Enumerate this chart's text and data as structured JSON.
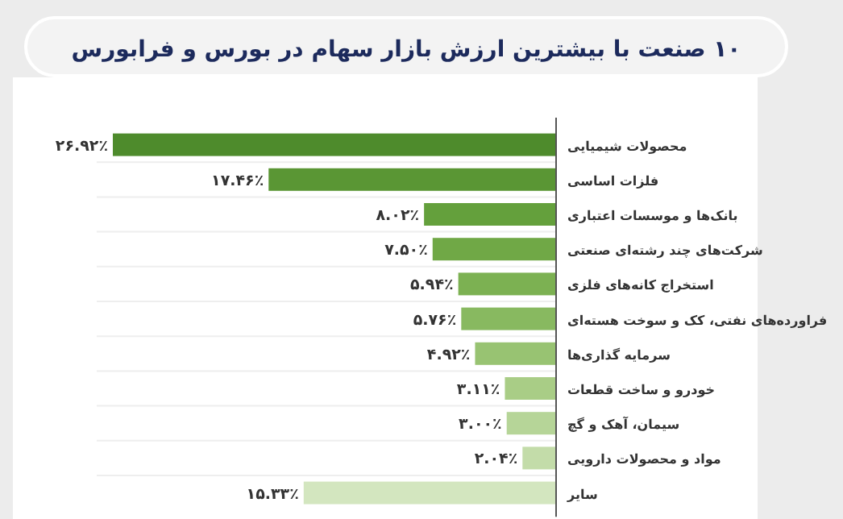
{
  "chart_data": {
    "type": "bar",
    "orientation": "horizontal",
    "title": "۱۰ صنعت با بیشترین ارزش بازار سهام در بورس و فرابورس",
    "categories": [
      "محصولات شیمیایی",
      "فلزات اساسی",
      "بانک‌ها و موسسات اعتباری",
      "شرکت‌های چند رشته‌ای صنعتی",
      "استخراج کانه‌های فلزی",
      "فراورده‌های نفتی، کک و سوخت هسته‌ای",
      "سرمایه گذاری‌ها",
      "خودرو و ساخت قطعات",
      "سیمان، آهک و گچ",
      "مواد و محصولات دارویی",
      "سایر"
    ],
    "values": [
      26.92,
      17.46,
      8.02,
      7.5,
      5.94,
      5.76,
      4.92,
      3.11,
      3.0,
      2.04,
      15.33
    ],
    "value_labels": [
      "۲۶.۹۲٪",
      "۱۷.۴۶٪",
      "۸.۰۲٪",
      "۷.۵۰٪",
      "۵.۹۴٪",
      "۵.۷۶٪",
      "۴.۹۲٪",
      "۳.۱۱٪",
      "۳.۰۰٪",
      "۲.۰۴٪",
      "۱۵.۳۳٪"
    ],
    "colors": [
      "#4e8b2c",
      "#5a9634",
      "#64a03c",
      "#70a846",
      "#7cb152",
      "#88b960",
      "#98c372",
      "#a9cd86",
      "#b6d598",
      "#c3dca9",
      "#d3e6bf"
    ]
  }
}
